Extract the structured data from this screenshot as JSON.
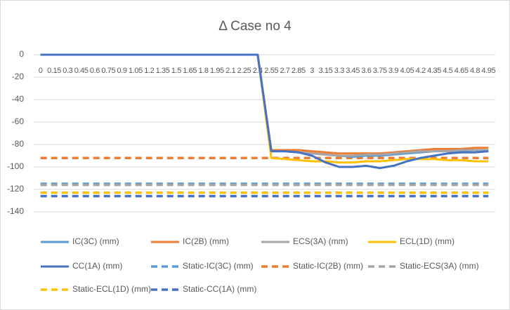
{
  "chart_data": {
    "type": "line",
    "title": "Δ Case no 4",
    "categories": [
      0,
      0.15,
      0.3,
      0.45,
      0.6,
      0.75,
      0.9,
      1.05,
      1.2,
      1.35,
      1.5,
      1.65,
      1.8,
      1.95,
      2.1,
      2.25,
      2.4,
      2.55,
      2.7,
      2.85,
      3,
      3.15,
      3.3,
      3.45,
      3.6,
      3.75,
      3.9,
      4.05,
      4.2,
      4.35,
      4.5,
      4.65,
      4.8,
      4.95
    ],
    "ylim": [
      -140,
      0
    ],
    "yticks": [
      0,
      -20,
      -40,
      -60,
      -80,
      -100,
      -120,
      -140
    ],
    "grid": true,
    "series": [
      {
        "name": "IC(3C) (mm)",
        "color": "#5b9bd5",
        "style": "solid",
        "values": [
          0,
          0,
          0,
          0,
          0,
          0,
          0,
          0,
          0,
          0,
          0,
          0,
          0,
          0,
          0,
          0,
          0,
          -86,
          -86,
          -87,
          -88,
          -89,
          -90,
          -91,
          -90,
          -90,
          -89,
          -88,
          -87,
          -86,
          -86,
          -86,
          -85,
          -85
        ]
      },
      {
        "name": "IC(2B) (mm)",
        "color": "#ed7d31",
        "style": "solid",
        "values": [
          0,
          0,
          0,
          0,
          0,
          0,
          0,
          0,
          0,
          0,
          0,
          0,
          0,
          0,
          0,
          0,
          0,
          -85,
          -85,
          -85,
          -86,
          -87,
          -88,
          -88,
          -88,
          -88,
          -87,
          -86,
          -85,
          -84,
          -84,
          -84,
          -83,
          -83
        ]
      },
      {
        "name": "ECS(3A) (mm)",
        "color": "#a5a5a5",
        "style": "solid",
        "values": [
          0,
          0,
          0,
          0,
          0,
          0,
          0,
          0,
          0,
          0,
          0,
          0,
          0,
          0,
          0,
          0,
          0,
          -86,
          -86,
          -87,
          -88,
          -89,
          -90,
          -90,
          -89,
          -89,
          -88,
          -87,
          -86,
          -86,
          -86,
          -85,
          -85,
          -85
        ]
      },
      {
        "name": "ECL(1D) (mm)",
        "color": "#ffc000",
        "style": "solid",
        "values": [
          0,
          0,
          0,
          0,
          0,
          0,
          0,
          0,
          0,
          0,
          0,
          0,
          0,
          0,
          0,
          0,
          0,
          -92,
          -93,
          -94,
          -95,
          -95,
          -96,
          -96,
          -95,
          -95,
          -94,
          -93,
          -93,
          -93,
          -94,
          -94,
          -95,
          -95
        ]
      },
      {
        "name": "CC(1A) (mm)",
        "color": "#4472c4",
        "style": "solid",
        "values": [
          0,
          0,
          0,
          0,
          0,
          0,
          0,
          0,
          0,
          0,
          0,
          0,
          0,
          0,
          0,
          0,
          0,
          -86,
          -86,
          -87,
          -90,
          -96,
          -100,
          -100,
          -99,
          -101,
          -99,
          -95,
          -92,
          -90,
          -88,
          -87,
          -87,
          -86
        ]
      },
      {
        "name": "Static-IC(3C) (mm)",
        "color": "#5b9bd5",
        "style": "dashed",
        "values": [
          -115,
          -115,
          -115,
          -115,
          -115,
          -115,
          -115,
          -115,
          -115,
          -115,
          -115,
          -115,
          -115,
          -115,
          -115,
          -115,
          -115,
          -115,
          -115,
          -115,
          -115,
          -115,
          -115,
          -115,
          -115,
          -115,
          -115,
          -115,
          -115,
          -115,
          -115,
          -115,
          -115,
          -115
        ]
      },
      {
        "name": "Static-IC(2B) (mm)",
        "color": "#ed7d31",
        "style": "dashed",
        "values": [
          -92,
          -92,
          -92,
          -92,
          -92,
          -92,
          -92,
          -92,
          -92,
          -92,
          -92,
          -92,
          -92,
          -92,
          -92,
          -92,
          -92,
          -92,
          -92,
          -92,
          -92,
          -92,
          -92,
          -92,
          -92,
          -92,
          -92,
          -92,
          -92,
          -92,
          -92,
          -92,
          -92,
          -92
        ]
      },
      {
        "name": "Static-ECS(3A) (mm)",
        "color": "#a5a5a5",
        "style": "dashed",
        "values": [
          -116,
          -116,
          -116,
          -116,
          -116,
          -116,
          -116,
          -116,
          -116,
          -116,
          -116,
          -116,
          -116,
          -116,
          -116,
          -116,
          -116,
          -116,
          -116,
          -116,
          -116,
          -116,
          -116,
          -116,
          -116,
          -116,
          -116,
          -116,
          -116,
          -116,
          -116,
          -116,
          -116,
          -116
        ]
      },
      {
        "name": "Static-ECL(1D) (mm)",
        "color": "#ffc000",
        "style": "dashed",
        "values": [
          -123,
          -123,
          -123,
          -123,
          -123,
          -123,
          -123,
          -123,
          -123,
          -123,
          -123,
          -123,
          -123,
          -123,
          -123,
          -123,
          -123,
          -123,
          -123,
          -123,
          -123,
          -123,
          -123,
          -123,
          -123,
          -123,
          -123,
          -123,
          -123,
          -123,
          -123,
          -123,
          -123,
          -123
        ]
      },
      {
        "name": "Static-CC(1A) (mm)",
        "color": "#4472c4",
        "style": "dashed",
        "values": [
          -126,
          -126,
          -126,
          -126,
          -126,
          -126,
          -126,
          -126,
          -126,
          -126,
          -126,
          -126,
          -126,
          -126,
          -126,
          -126,
          -126,
          -126,
          -126,
          -126,
          -126,
          -126,
          -126,
          -126,
          -126,
          -126,
          -126,
          -126,
          -126,
          -126,
          -126,
          -126,
          -126,
          -126
        ]
      }
    ]
  }
}
